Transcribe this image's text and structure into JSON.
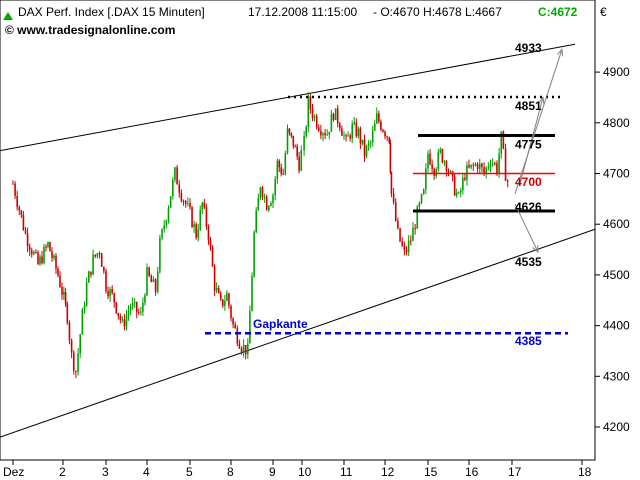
{
  "header": {
    "symbol_label": "DAX Perf. Index [.DAX  15 Minuten]",
    "datetime": "17.12.2008 11:15:00",
    "ohlc": "- O:4670 H:4678 L:4667",
    "close": "C:4672",
    "currency": "€",
    "watermark": "© www.tradesignalonline.com",
    "up_arrow_icon": "green-up-triangle",
    "close_color": "#00aa00"
  },
  "chart_data": {
    "type": "candlestick",
    "title": "DAX Perf. Index [.DAX  15 Minuten]",
    "interval": "15 Minuten",
    "y_unit": "€",
    "ylim": [
      4150,
      4980
    ],
    "y_ticks": [
      4200,
      4300,
      4400,
      4500,
      4600,
      4700,
      4800,
      4900
    ],
    "x_ticks": [
      "Dez",
      "2",
      "3",
      "4",
      "5",
      "8",
      "9",
      "10",
      "11",
      "12",
      "15",
      "16",
      "17",
      "18"
    ],
    "grid": false,
    "path": [
      [
        0.0,
        4680
      ],
      [
        0.25,
        4580
      ],
      [
        0.5,
        4520
      ],
      [
        0.7,
        4560
      ],
      [
        0.9,
        4500
      ],
      [
        1.1,
        4420
      ],
      [
        1.2,
        4340
      ],
      [
        1.3,
        4310
      ],
      [
        1.45,
        4420
      ],
      [
        1.55,
        4480
      ],
      [
        1.7,
        4530
      ],
      [
        1.85,
        4550
      ],
      [
        2.0,
        4480
      ],
      [
        2.2,
        4450
      ],
      [
        2.4,
        4400
      ],
      [
        2.6,
        4440
      ],
      [
        2.85,
        4420
      ],
      [
        3.0,
        4500
      ],
      [
        3.2,
        4470
      ],
      [
        3.3,
        4560
      ],
      [
        3.5,
        4640
      ],
      [
        3.65,
        4700
      ],
      [
        3.8,
        4660
      ],
      [
        4.0,
        4620
      ],
      [
        4.15,
        4580
      ],
      [
        4.3,
        4640
      ],
      [
        4.45,
        4580
      ],
      [
        4.6,
        4480
      ],
      [
        4.75,
        4440
      ],
      [
        4.9,
        4460
      ],
      [
        5.05,
        4400
      ],
      [
        5.25,
        4360
      ],
      [
        5.4,
        4350
      ],
      [
        5.55,
        4580
      ],
      [
        5.7,
        4680
      ],
      [
        5.85,
        4640
      ],
      [
        6.0,
        4660
      ],
      [
        6.15,
        4720
      ],
      [
        6.35,
        4700
      ],
      [
        6.5,
        4780
      ],
      [
        6.7,
        4760
      ],
      [
        6.9,
        4720
      ],
      [
        7.05,
        4760
      ],
      [
        7.15,
        4840
      ],
      [
        7.3,
        4810
      ],
      [
        7.45,
        4790
      ],
      [
        7.6,
        4780
      ],
      [
        7.75,
        4820
      ],
      [
        7.9,
        4800
      ],
      [
        8.05,
        4760
      ],
      [
        8.2,
        4790
      ],
      [
        8.35,
        4780
      ],
      [
        8.5,
        4740
      ],
      [
        8.65,
        4760
      ],
      [
        8.8,
        4810
      ],
      [
        8.95,
        4790
      ],
      [
        9.1,
        4770
      ],
      [
        9.15,
        4660
      ],
      [
        9.3,
        4580
      ],
      [
        9.45,
        4540
      ],
      [
        9.6,
        4570
      ],
      [
        9.75,
        4620
      ],
      [
        9.9,
        4660
      ],
      [
        10.0,
        4740
      ],
      [
        10.15,
        4710
      ],
      [
        10.3,
        4740
      ],
      [
        10.45,
        4720
      ],
      [
        10.6,
        4680
      ],
      [
        10.75,
        4650
      ],
      [
        10.9,
        4700
      ],
      [
        11.05,
        4710
      ],
      [
        11.2,
        4720
      ],
      [
        11.35,
        4700
      ],
      [
        11.5,
        4730
      ],
      [
        11.65,
        4710
      ],
      [
        11.75,
        4770
      ],
      [
        11.85,
        4700
      ],
      [
        11.95,
        4670
      ]
    ],
    "highlights": {
      "gap_low": 4320
    },
    "levels": [
      {
        "name": "4933",
        "value": 4933
      },
      {
        "name": "4851",
        "value": 4851
      },
      {
        "name": "4775",
        "value": 4775
      },
      {
        "name": "4700",
        "value": 4700
      },
      {
        "name": "4626",
        "value": 4626
      },
      {
        "name": "4535",
        "value": 4535
      },
      {
        "name": "4385",
        "value": 4385
      }
    ],
    "annotations": {
      "gap_label": "Gapkante"
    },
    "colors": {
      "up": "#00a000",
      "down": "#cc0000",
      "resistance": "#000000",
      "pivot": "#ff0000",
      "gap": "#0000cc",
      "trend": "#000000",
      "projection": "#808080"
    }
  }
}
